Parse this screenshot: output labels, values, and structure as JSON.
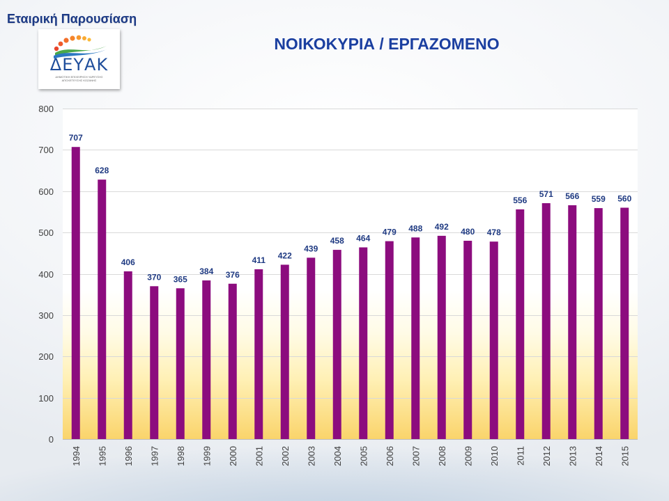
{
  "slide": {
    "header": "Εταιρική Παρουσίαση"
  },
  "logo": {
    "name": "ΔΕΥΑΚ",
    "subtitle_line1": "ΔΗΜΟΤΙΚΗ ΕΠΙΧΕΙΡΗΣΗ ΥΔΡΕΥΣΗΣ",
    "subtitle_line2": "ΑΠΟΧΕΤΕΥΣΗΣ ΚΟΖΑΝΗΣ"
  },
  "chart_data": {
    "type": "bar",
    "title": "ΝΟΙΚΟΚΥΡΙΑ / ΕΡΓΑΖΟΜΕΝΟ",
    "xlabel": "",
    "ylabel": "",
    "categories": [
      "1994",
      "1995",
      "1996",
      "1997",
      "1998",
      "1999",
      "2000",
      "2001",
      "2002",
      "2003",
      "2004",
      "2005",
      "2006",
      "2007",
      "2008",
      "2009",
      "2010",
      "2011",
      "2012",
      "2013",
      "2014",
      "2015"
    ],
    "values": [
      707,
      628,
      406,
      370,
      365,
      384,
      376,
      411,
      422,
      439,
      458,
      464,
      479,
      488,
      492,
      480,
      478,
      556,
      571,
      566,
      559,
      560
    ],
    "ylim": [
      0,
      800
    ],
    "yticks": [
      0,
      100,
      200,
      300,
      400,
      500,
      600,
      700,
      800
    ],
    "grid": true,
    "legend": "none",
    "data_labels": true,
    "x_tick_rotation": "vertical"
  },
  "colors": {
    "bar": "#8c0c7e",
    "value_label": "#1f3a82",
    "title": "#1b3fa0",
    "header": "#1c3a86",
    "tick_label": "#404040",
    "grid": "#d9d9d9",
    "plot_bottom": "#fad46b"
  }
}
